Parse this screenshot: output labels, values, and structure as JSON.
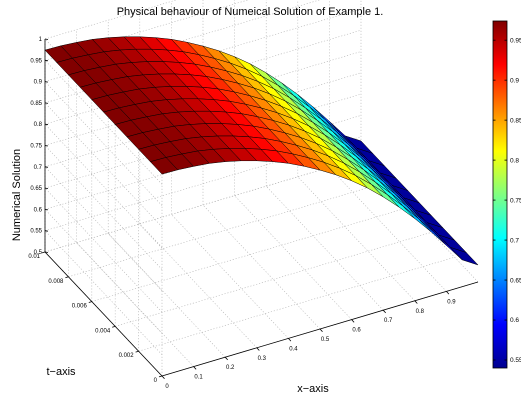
{
  "chart_data": {
    "type": "surface",
    "title": "Physical behaviour of Numeical Solution of Example 1.",
    "xlabel": "x−axis",
    "ylabel": "t−axis",
    "zlabel": "Numerical Solution",
    "xlim": [
      0,
      1
    ],
    "ylim": [
      0,
      0.01
    ],
    "zlim": [
      0.5,
      1
    ],
    "xticks": [
      "0",
      "0.1",
      "0.2",
      "0.3",
      "0.4",
      "0.5",
      "0.6",
      "0.7",
      "0.8",
      "0.9"
    ],
    "yticks": [
      "0",
      "0.002",
      "0.004",
      "0.006",
      "0.008",
      "0.01"
    ],
    "zticks": [
      "0.5",
      "0.55",
      "0.6",
      "0.65",
      "0.7",
      "0.75",
      "0.8",
      "0.85",
      "0.9",
      "0.95",
      "1"
    ],
    "x": [
      0,
      0.05,
      0.1,
      0.15,
      0.2,
      0.25,
      0.3,
      0.35,
      0.4,
      0.45,
      0.5,
      0.55,
      0.6,
      0.65,
      0.7,
      0.75,
      0.8,
      0.85,
      0.9,
      0.95,
      1.0
    ],
    "t": [
      0,
      0.001,
      0.002,
      0.003,
      0.004,
      0.005,
      0.006,
      0.007,
      0.008,
      0.009,
      0.01
    ],
    "surface_t0": [
      0.974,
      0.973,
      0.97,
      0.966,
      0.959,
      0.95,
      0.939,
      0.926,
      0.911,
      0.893,
      0.873,
      0.851,
      0.826,
      0.798,
      0.766,
      0.731,
      0.693,
      0.652,
      0.608,
      0.563,
      0.54
    ],
    "surface_t001": [
      0.974,
      0.973,
      0.97,
      0.966,
      0.959,
      0.95,
      0.939,
      0.926,
      0.911,
      0.893,
      0.873,
      0.851,
      0.826,
      0.798,
      0.766,
      0.731,
      0.693,
      0.652,
      0.608,
      0.563,
      0.54
    ],
    "colormap": "jet",
    "colorbar": {
      "range": [
        0.54,
        0.974
      ],
      "ticks": [
        "0.55",
        "0.6",
        "0.65",
        "0.7",
        "0.75",
        "0.8",
        "0.85",
        "0.9",
        "0.95"
      ]
    },
    "grid": true
  }
}
